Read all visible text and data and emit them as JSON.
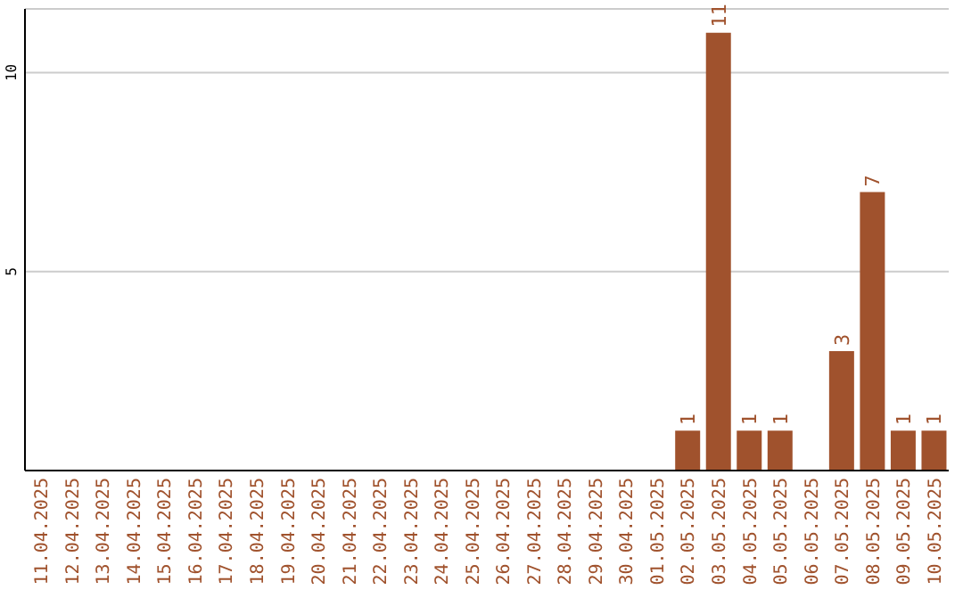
{
  "chart_data": {
    "type": "bar",
    "categories": [
      "11.04.2025",
      "12.04.2025",
      "13.04.2025",
      "14.04.2025",
      "15.04.2025",
      "16.04.2025",
      "17.04.2025",
      "18.04.2025",
      "19.04.2025",
      "20.04.2025",
      "21.04.2025",
      "22.04.2025",
      "23.04.2025",
      "24.04.2025",
      "25.04.2025",
      "26.04.2025",
      "27.04.2025",
      "28.04.2025",
      "29.04.2025",
      "30.04.2025",
      "01.05.2025",
      "02.05.2025",
      "03.05.2025",
      "04.05.2025",
      "05.05.2025",
      "06.05.2025",
      "07.05.2025",
      "08.05.2025",
      "09.05.2025",
      "10.05.2025"
    ],
    "values": [
      0,
      0,
      0,
      0,
      0,
      0,
      0,
      0,
      0,
      0,
      0,
      0,
      0,
      0,
      0,
      0,
      0,
      0,
      0,
      0,
      0,
      1,
      11,
      1,
      1,
      0,
      3,
      7,
      1,
      1
    ],
    "value_labels": [
      null,
      null,
      null,
      null,
      null,
      null,
      null,
      null,
      null,
      null,
      null,
      null,
      null,
      null,
      null,
      null,
      null,
      null,
      null,
      null,
      null,
      "1",
      "11",
      "1",
      "1",
      null,
      "3",
      "7",
      "1",
      "1"
    ],
    "color": "#a0522d",
    "ylim": [
      0,
      11.6
    ],
    "yticks": [
      5,
      10
    ],
    "grid": "y"
  }
}
